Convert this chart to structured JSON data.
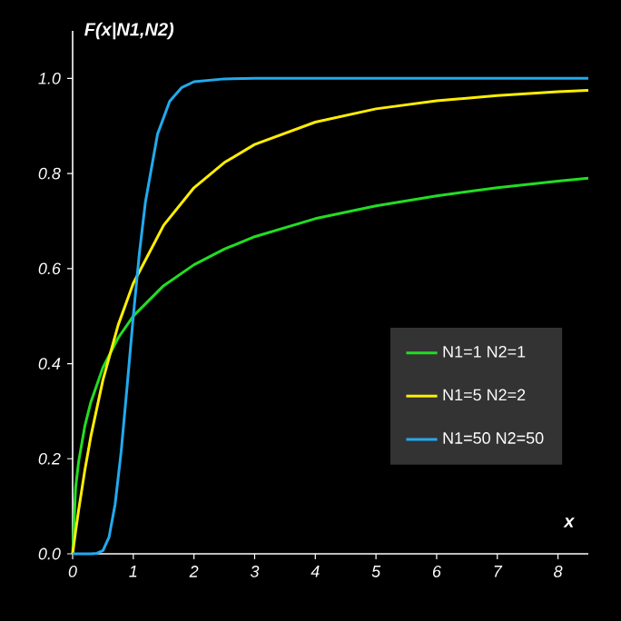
{
  "chart_data": {
    "type": "line",
    "ylabel": "F(x|N1,N2)",
    "xlabel": "x",
    "xlim": [
      0,
      8.5
    ],
    "ylim": [
      0,
      1.1
    ],
    "xticks": [
      0,
      1,
      2,
      3,
      4,
      5,
      6,
      7,
      8
    ],
    "yticks": [
      {
        "value": 0,
        "label": "0.0"
      },
      {
        "value": 0.2,
        "label": "0.2"
      },
      {
        "value": 0.4,
        "label": "0.4"
      },
      {
        "value": 0.6,
        "label": "0.6"
      },
      {
        "value": 0.8,
        "label": "0.8"
      },
      {
        "value": 1.0,
        "label": "1.0"
      }
    ],
    "grid": false,
    "legend": "bottom right",
    "marker": "none",
    "line_style": "solid",
    "series": [
      {
        "name": "N1=1  N2=1",
        "color": "#22dd22",
        "x": [
          0,
          0.05,
          0.1,
          0.2,
          0.3,
          0.5,
          0.75,
          1,
          1.5,
          2,
          2.5,
          3,
          4,
          5,
          6,
          7,
          8,
          8.5
        ],
        "values": [
          0,
          0.14,
          0.195,
          0.268,
          0.319,
          0.392,
          0.454,
          0.5,
          0.564,
          0.608,
          0.641,
          0.667,
          0.705,
          0.732,
          0.753,
          0.77,
          0.784,
          0.79
        ]
      },
      {
        "name": "N1=5  N2=2",
        "color": "#ffee00",
        "x": [
          0,
          0.05,
          0.1,
          0.2,
          0.3,
          0.5,
          0.75,
          1,
          1.5,
          2,
          2.5,
          3,
          4,
          5,
          6,
          7,
          8,
          8.5
        ],
        "values": [
          0,
          0.048,
          0.093,
          0.175,
          0.247,
          0.366,
          0.481,
          0.569,
          0.691,
          0.77,
          0.823,
          0.861,
          0.908,
          0.936,
          0.953,
          0.964,
          0.972,
          0.975
        ]
      },
      {
        "name": "N1=50  N2=50",
        "color": "#22aaee",
        "x": [
          0,
          0.3,
          0.4,
          0.5,
          0.6,
          0.7,
          0.8,
          0.9,
          1,
          1.1,
          1.2,
          1.4,
          1.6,
          1.8,
          2,
          2.5,
          3,
          8.5
        ],
        "values": [
          0,
          0,
          0.001,
          0.007,
          0.035,
          0.104,
          0.215,
          0.355,
          0.5,
          0.632,
          0.74,
          0.883,
          0.952,
          0.981,
          0.993,
          0.999,
          1.0,
          1.0
        ]
      }
    ]
  }
}
